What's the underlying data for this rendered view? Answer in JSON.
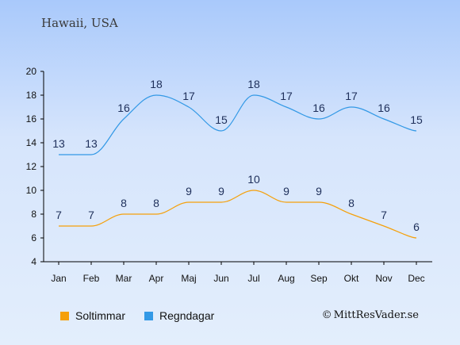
{
  "header": {
    "location": "Hawaii, USA"
  },
  "legend": [
    {
      "label": "Soltimmar",
      "color": "#f5a00a"
    },
    {
      "label": "Regndagar",
      "color": "#3399e6"
    }
  ],
  "credit": {
    "symbol": "©",
    "text": "MittResVader.se"
  },
  "chart_data": {
    "type": "line",
    "categories": [
      "Jan",
      "Feb",
      "Mar",
      "Apr",
      "Maj",
      "Jun",
      "Jul",
      "Aug",
      "Sep",
      "Okt",
      "Nov",
      "Dec"
    ],
    "series": [
      {
        "name": "Soltimmar",
        "color": "#f5a00a",
        "values": [
          7,
          7,
          8,
          8,
          9,
          9,
          10,
          9,
          9,
          8,
          7,
          6
        ]
      },
      {
        "name": "Regndagar",
        "color": "#3399e6",
        "values": [
          13,
          13,
          16,
          18,
          17,
          15,
          18,
          17,
          16,
          17,
          16,
          15
        ]
      }
    ],
    "ylim": [
      4,
      20
    ],
    "yticks": [
      4,
      6,
      8,
      10,
      12,
      14,
      16,
      18,
      20
    ],
    "grid": false,
    "legend_position": "bottom"
  }
}
